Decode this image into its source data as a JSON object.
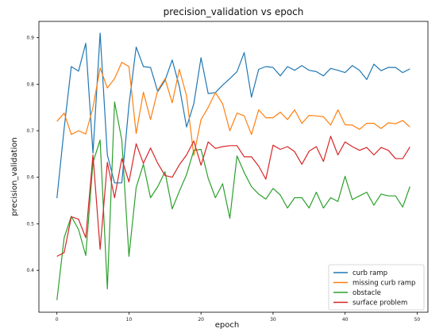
{
  "chart_data": {
    "type": "line",
    "title": "precision_validation vs epoch",
    "xlabel": "epoch",
    "ylabel": "precision_validation",
    "xlim": [
      -2.5,
      51.5
    ],
    "ylim": [
      0.31,
      0.935
    ],
    "x_ticks": [
      0,
      10,
      20,
      30,
      40,
      50
    ],
    "y_ticks": [
      0.4,
      0.5,
      0.6,
      0.7,
      0.8,
      0.9
    ],
    "grid": false,
    "legend_position": "lower-right",
    "x": [
      0,
      1,
      2,
      3,
      4,
      5,
      6,
      7,
      8,
      9,
      10,
      11,
      12,
      13,
      14,
      15,
      16,
      17,
      18,
      19,
      20,
      21,
      22,
      23,
      24,
      25,
      26,
      27,
      28,
      29,
      30,
      31,
      32,
      33,
      34,
      35,
      36,
      37,
      38,
      39,
      40,
      41,
      42,
      43,
      44,
      45,
      46,
      47,
      48,
      49
    ],
    "series": [
      {
        "name": "curb ramp",
        "color": "#1f77b4",
        "values": [
          0.555,
          0.705,
          0.838,
          0.828,
          0.888,
          0.652,
          0.91,
          0.648,
          0.588,
          0.588,
          0.755,
          0.88,
          0.838,
          0.836,
          0.784,
          0.808,
          0.852,
          0.795,
          0.708,
          0.758,
          0.857,
          0.78,
          0.782,
          0.798,
          0.812,
          0.827,
          0.868,
          0.772,
          0.832,
          0.838,
          0.836,
          0.818,
          0.838,
          0.83,
          0.84,
          0.83,
          0.827,
          0.818,
          0.834,
          0.83,
          0.825,
          0.84,
          0.83,
          0.81,
          0.843,
          0.829,
          0.836,
          0.836,
          0.825,
          0.833
        ]
      },
      {
        "name": "missing curb ramp",
        "color": "#ff7f0e",
        "values": [
          0.72,
          0.738,
          0.692,
          0.7,
          0.693,
          0.75,
          0.835,
          0.792,
          0.812,
          0.847,
          0.838,
          0.694,
          0.783,
          0.724,
          0.787,
          0.812,
          0.76,
          0.832,
          0.775,
          0.647,
          0.724,
          0.75,
          0.782,
          0.758,
          0.7,
          0.738,
          0.732,
          0.692,
          0.745,
          0.728,
          0.728,
          0.74,
          0.724,
          0.745,
          0.716,
          0.733,
          0.732,
          0.73,
          0.712,
          0.745,
          0.713,
          0.712,
          0.703,
          0.716,
          0.716,
          0.705,
          0.717,
          0.715,
          0.722,
          0.708
        ]
      },
      {
        "name": "obstacle",
        "color": "#2ca02c",
        "values": [
          0.336,
          0.47,
          0.516,
          0.488,
          0.432,
          0.632,
          0.68,
          0.36,
          0.762,
          0.68,
          0.43,
          0.578,
          0.628,
          0.556,
          0.58,
          0.612,
          0.532,
          0.57,
          0.606,
          0.658,
          0.66,
          0.598,
          0.556,
          0.586,
          0.512,
          0.646,
          0.61,
          0.58,
          0.564,
          0.553,
          0.576,
          0.562,
          0.534,
          0.556,
          0.556,
          0.534,
          0.568,
          0.534,
          0.556,
          0.548,
          0.602,
          0.552,
          0.56,
          0.568,
          0.54,
          0.564,
          0.56,
          0.56,
          0.536,
          0.58
        ]
      },
      {
        "name": "surface problem",
        "color": "#d62728",
        "values": [
          0.43,
          0.438,
          0.515,
          0.51,
          0.47,
          0.648,
          0.445,
          0.632,
          0.556,
          0.64,
          0.59,
          0.672,
          0.63,
          0.663,
          0.63,
          0.604,
          0.6,
          0.627,
          0.648,
          0.678,
          0.626,
          0.676,
          0.662,
          0.666,
          0.668,
          0.668,
          0.644,
          0.644,
          0.624,
          0.596,
          0.669,
          0.66,
          0.666,
          0.655,
          0.628,
          0.656,
          0.666,
          0.634,
          0.688,
          0.648,
          0.676,
          0.666,
          0.658,
          0.664,
          0.648,
          0.664,
          0.658,
          0.64,
          0.64,
          0.665
        ]
      }
    ]
  }
}
